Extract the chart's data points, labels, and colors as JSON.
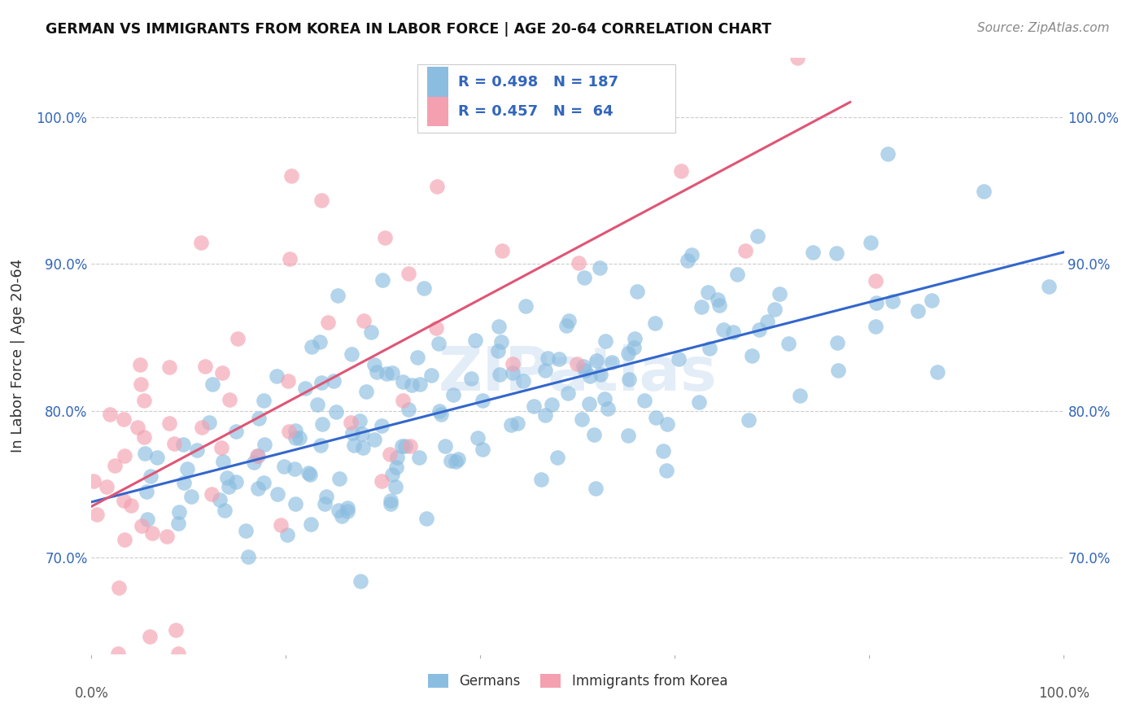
{
  "title": "GERMAN VS IMMIGRANTS FROM KOREA IN LABOR FORCE | AGE 20-64 CORRELATION CHART",
  "source": "Source: ZipAtlas.com",
  "ylabel": "In Labor Force | Age 20-64",
  "ytick_labels": [
    "70.0%",
    "80.0%",
    "90.0%",
    "100.0%"
  ],
  "ytick_values": [
    0.7,
    0.8,
    0.9,
    1.0
  ],
  "legend_label1": "Germans",
  "legend_label2": "Immigrants from Korea",
  "r1": 0.498,
  "n1": 187,
  "r2": 0.457,
  "n2": 64,
  "blue_color": "#8bbde0",
  "pink_color": "#f4a0b0",
  "blue_line_color": "#3366cc",
  "pink_line_color": "#e05575",
  "blue_text_color": "#3366bb",
  "watermark": "ZIPatlas",
  "seed": 42,
  "xlim": [
    0.0,
    1.0
  ],
  "ylim": [
    0.635,
    1.04
  ],
  "blue_trend_x0": 0.0,
  "blue_trend_x1": 1.0,
  "blue_trend_y0": 0.738,
  "blue_trend_y1": 0.908,
  "pink_trend_x0": 0.0,
  "pink_trend_x1": 0.78,
  "pink_trend_y0": 0.735,
  "pink_trend_y1": 1.01
}
